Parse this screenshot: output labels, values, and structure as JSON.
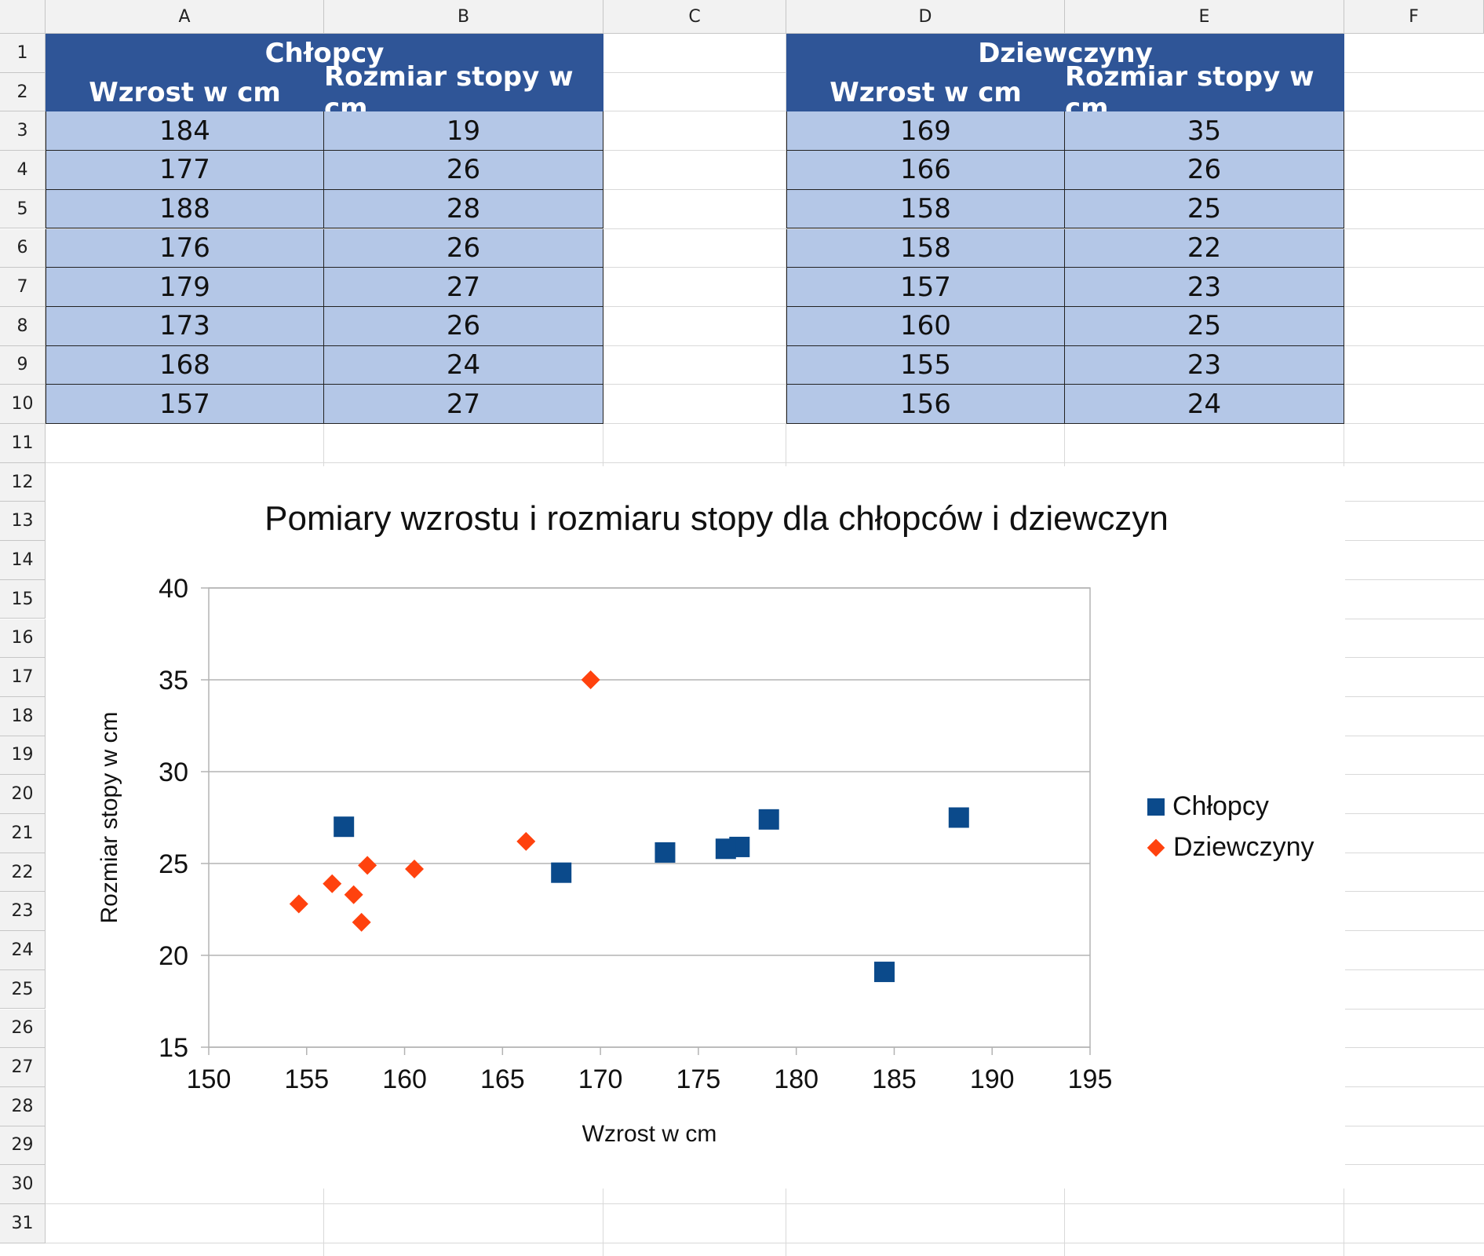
{
  "columns": [
    "A",
    "B",
    "C",
    "D",
    "E",
    "F"
  ],
  "rows": [
    "1",
    "2",
    "3",
    "4",
    "5",
    "6",
    "7",
    "8",
    "9",
    "10",
    "11",
    "12",
    "13",
    "14",
    "15",
    "16",
    "17",
    "18",
    "19",
    "20",
    "21",
    "22",
    "23",
    "24",
    "25",
    "26",
    "27",
    "28",
    "29",
    "30",
    "31"
  ],
  "boys_table": {
    "title": "Chłopcy",
    "col1": "Wzrost w cm",
    "col2": "Rozmiar stopy w cm",
    "rows": [
      [
        "184",
        "19"
      ],
      [
        "177",
        "26"
      ],
      [
        "188",
        "28"
      ],
      [
        "176",
        "26"
      ],
      [
        "179",
        "27"
      ],
      [
        "173",
        "26"
      ],
      [
        "168",
        "24"
      ],
      [
        "157",
        "27"
      ]
    ]
  },
  "girls_table": {
    "title": "Dziewczyny",
    "col1": "Wzrost w cm",
    "col2": "Rozmiar stopy w cm",
    "rows": [
      [
        "169",
        "35"
      ],
      [
        "166",
        "26"
      ],
      [
        "158",
        "25"
      ],
      [
        "158",
        "22"
      ],
      [
        "157",
        "23"
      ],
      [
        "160",
        "25"
      ],
      [
        "155",
        "23"
      ],
      [
        "156",
        "24"
      ]
    ]
  },
  "colors": {
    "header": "#2f5597",
    "data": "#b4c7e7",
    "boys": "#0b4a8b",
    "girls": "#ff420e"
  },
  "chart_data": {
    "type": "scatter",
    "title": "Pomiary wzrostu i rozmiaru stopy dla chłopców i dziewczyn",
    "xlabel": "Wzrost w cm",
    "ylabel": "Rozmiar stopy w cm",
    "xlim": [
      150,
      195
    ],
    "ylim": [
      15,
      40
    ],
    "xticks": [
      "150",
      "155",
      "160",
      "165",
      "170",
      "175",
      "180",
      "185",
      "190",
      "195"
    ],
    "yticks": [
      "15",
      "20",
      "25",
      "30",
      "35",
      "40"
    ],
    "legend_position": "right",
    "series": [
      {
        "name": "Chłopcy",
        "marker": "square",
        "points": [
          [
            184.5,
            19.1
          ],
          [
            177.1,
            25.9
          ],
          [
            188.3,
            27.5
          ],
          [
            176.4,
            25.8
          ],
          [
            178.6,
            27.4
          ],
          [
            173.3,
            25.6
          ],
          [
            168.0,
            24.5
          ],
          [
            156.9,
            27.0
          ]
        ]
      },
      {
        "name": "Dziewczyny",
        "marker": "diamond",
        "points": [
          [
            169.5,
            35.0
          ],
          [
            166.2,
            26.2
          ],
          [
            158.1,
            24.9
          ],
          [
            157.8,
            21.8
          ],
          [
            157.4,
            23.3
          ],
          [
            160.5,
            24.7
          ],
          [
            154.6,
            22.8
          ],
          [
            156.3,
            23.9
          ]
        ]
      }
    ]
  }
}
